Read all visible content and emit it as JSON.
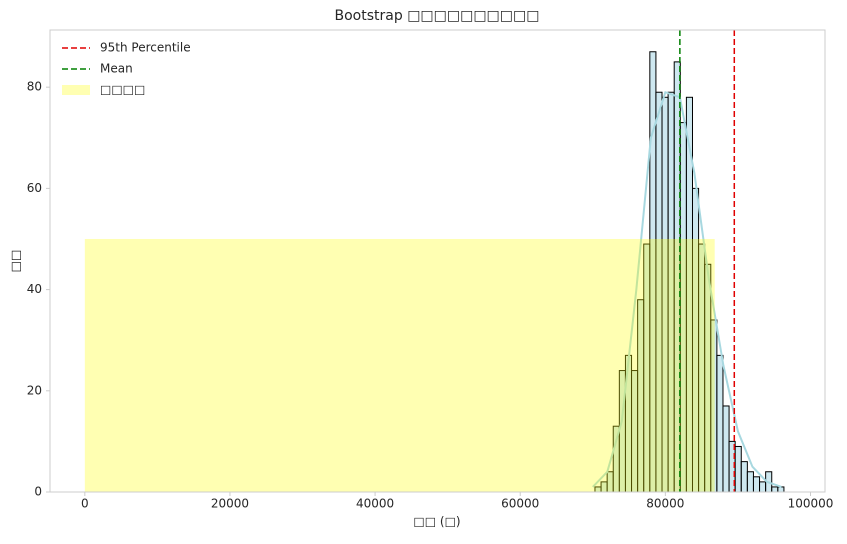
{
  "chart_data": {
    "type": "histogram",
    "title": "Bootstrap □□□□□□□□□□",
    "xlabel": "□□ (□)",
    "ylabel": "□□",
    "bins": [
      70300,
      71140,
      71980,
      72820,
      73660,
      74500,
      75340,
      76180,
      77020,
      77860,
      78700,
      79540,
      80380,
      81220,
      82060,
      82900,
      83740,
      84580,
      85420,
      86260,
      87100,
      87940,
      88780,
      89620,
      90460,
      91300,
      92140,
      92980,
      93820,
      94660,
      95500,
      96340,
      97180
    ],
    "counts": [
      1,
      2,
      4,
      13,
      24,
      27,
      24,
      38,
      49,
      87,
      79,
      78,
      79,
      85,
      73,
      78,
      60,
      49,
      45,
      34,
      27,
      17,
      10,
      9,
      6,
      4,
      3,
      2,
      4,
      1,
      1,
      0
    ],
    "color": "#add8e6",
    "edgecolor": "#000000",
    "kde": {
      "color": "#a8d8e0",
      "x": [
        70000,
        72000,
        74000,
        76000,
        78000,
        80000,
        82000,
        84000,
        86000,
        88000,
        90000,
        92000,
        94000,
        96000
      ],
      "y": [
        1,
        4,
        14,
        40,
        70,
        79,
        78,
        63,
        42,
        25,
        12,
        5,
        2,
        1
      ]
    },
    "vlines": [
      {
        "name": "95th Percentile",
        "color": "#e00000",
        "x": 89500
      },
      {
        "name": "Mean",
        "color": "#008000",
        "x": 82000
      }
    ],
    "shade": {
      "name": "□□□□",
      "color": "#ffff00",
      "x": [
        0,
        86800
      ],
      "height": 50
    },
    "xlim": [
      -4800,
      102000
    ],
    "ylim": [
      0,
      91.3
    ],
    "xticks": [
      0,
      20000,
      40000,
      60000,
      80000,
      100000
    ],
    "yticks": [
      0,
      20,
      40,
      60,
      80
    ],
    "grid": false,
    "legend": "upper left"
  }
}
